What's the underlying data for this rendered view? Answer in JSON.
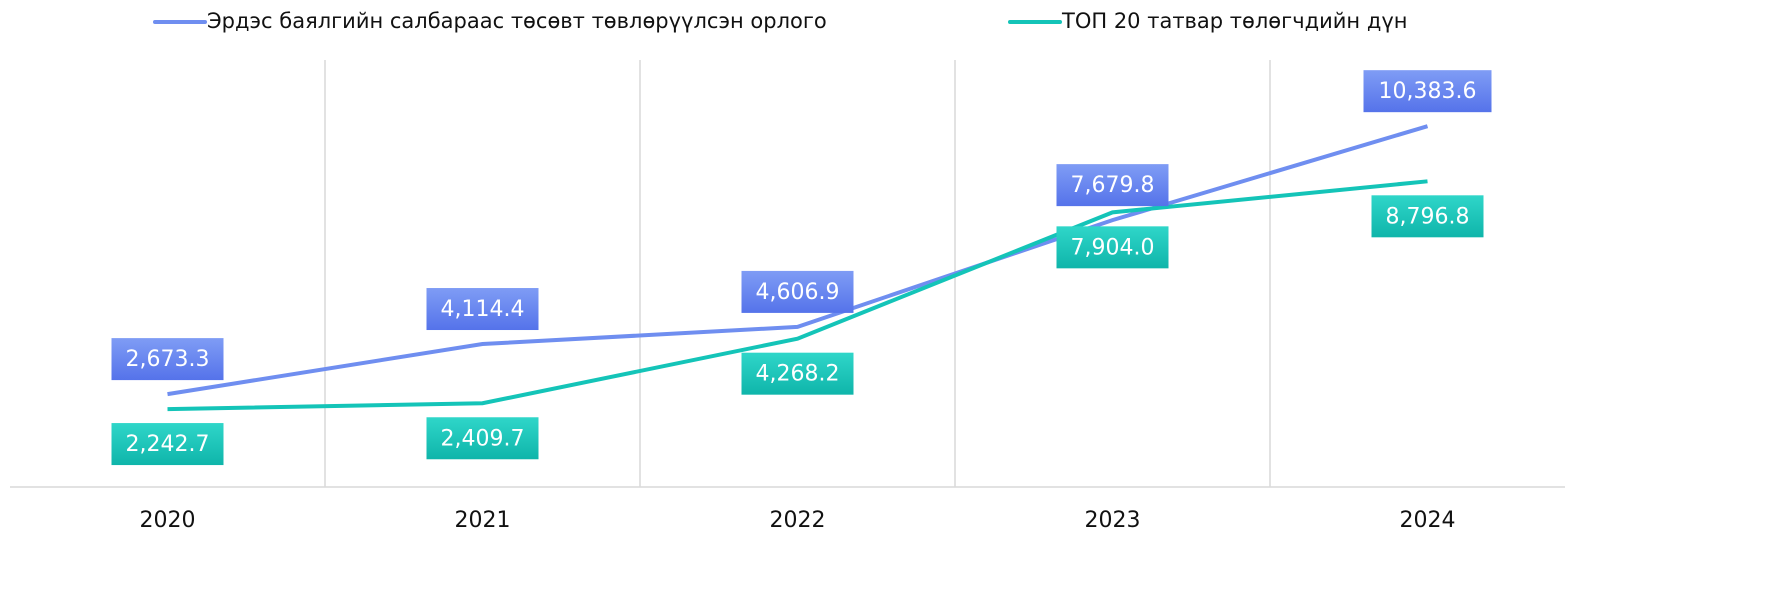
{
  "chart_data": {
    "type": "line",
    "categories": [
      "2020",
      "2021",
      "2022",
      "2023",
      "2024"
    ],
    "series": [
      {
        "name": "Эрдэс баялгийн салбараас төсөвт төвлөрүүлсэн орлого",
        "color": "#6f8ef0",
        "values": [
          2673.3,
          4114.4,
          4606.9,
          7679.8,
          10383.6
        ],
        "value_labels": [
          "2,673.3",
          "4,114.4",
          "4,606.9",
          "7,679.8",
          "10,383.6"
        ]
      },
      {
        "name": "ТОП 20 татвар төлөгчдийн дүн",
        "color": "#14c4b8",
        "values": [
          2242.7,
          2409.7,
          4268.2,
          7904.0,
          8796.8
        ],
        "value_labels": [
          "2,242.7",
          "2,409.7",
          "4,268.2",
          "7,904.0",
          "8,796.8"
        ]
      }
    ],
    "ylim": [
      0,
      12000
    ],
    "grid": true,
    "legend": "top"
  }
}
